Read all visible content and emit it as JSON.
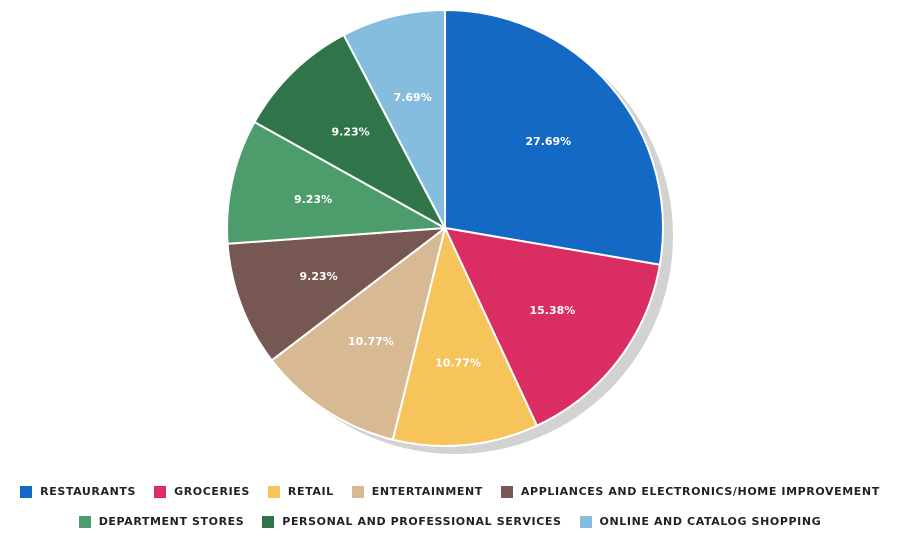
{
  "chart_data": {
    "type": "pie",
    "title": "",
    "categories": [
      "Restaurants",
      "Groceries",
      "Retail",
      "Entertainment",
      "Appliances and Electronics/Home Improvement",
      "Department Stores",
      "Personal and Professional Services",
      "Online and Catalog Shopping"
    ],
    "values": [
      27.69,
      15.38,
      10.77,
      10.77,
      9.23,
      9.23,
      9.23,
      7.69
    ],
    "data_labels": [
      "27.69%",
      "15.38%",
      "10.77%",
      "10.77%",
      "9.23%",
      "9.23%",
      "9.23%",
      "7.69%"
    ],
    "colors": [
      "#1469C4",
      "#DA2E63",
      "#F7C35B",
      "#D7BA93",
      "#775752",
      "#4D9D6C",
      "#307549",
      "#84BDDE"
    ],
    "shadow_color": "#D2D2D2",
    "legend_placement": "bottom"
  }
}
